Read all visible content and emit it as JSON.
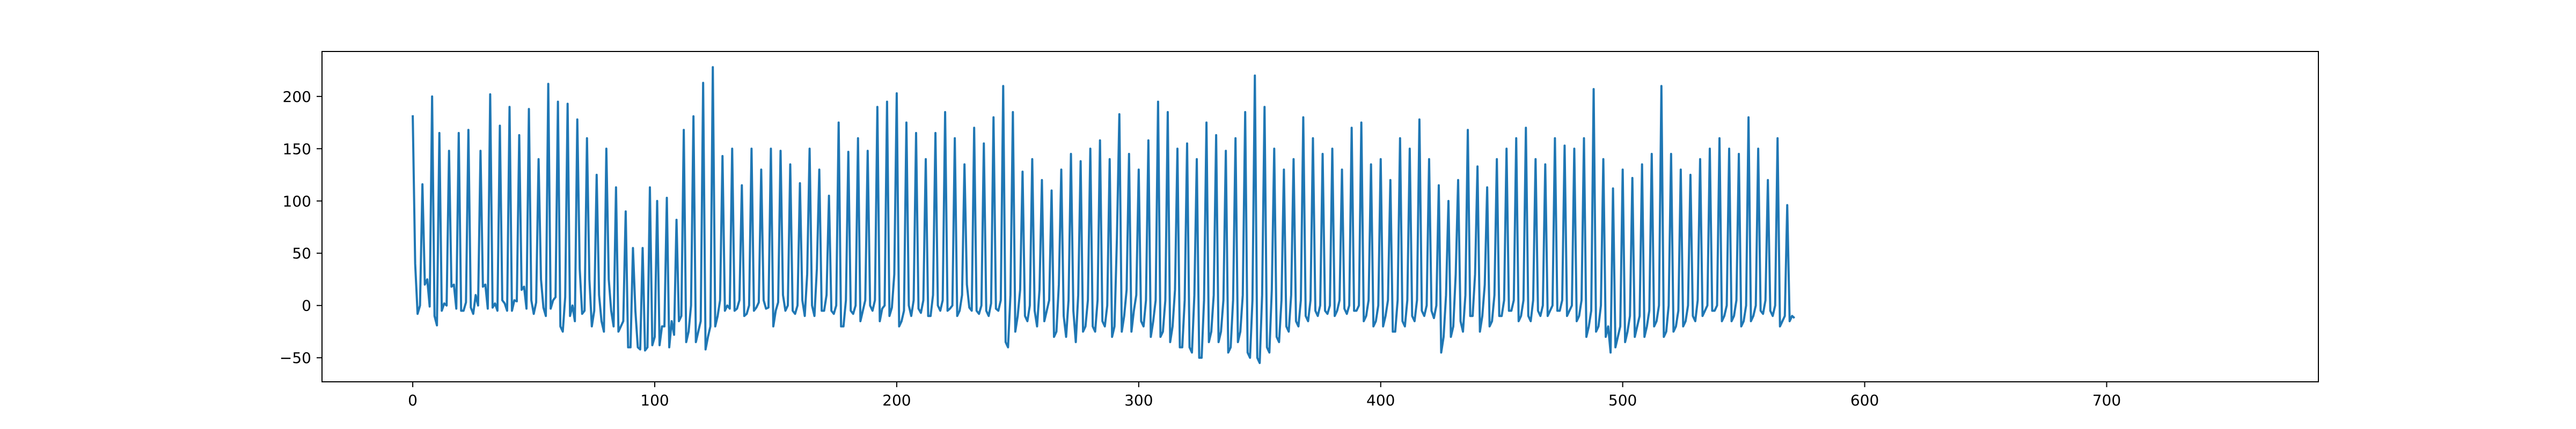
{
  "chart_data": {
    "type": "line",
    "title": "",
    "xlabel": "",
    "ylabel": "",
    "xlim": [
      -37.5,
      787.5
    ],
    "ylim": [
      -73,
      243
    ],
    "x_ticks": [
      0,
      100,
      200,
      300,
      400,
      500,
      600,
      700
    ],
    "y_ticks": [
      -50,
      0,
      50,
      100,
      150,
      200
    ],
    "x_tick_labels": [
      "0",
      "100",
      "200",
      "300",
      "400",
      "500",
      "600",
      "700"
    ],
    "y_tick_labels": [
      "−50",
      "0",
      "50",
      "100",
      "150",
      "200"
    ],
    "grid": false,
    "legend": "none",
    "series": [
      {
        "color": "#1f77b4",
        "x_start": 0,
        "x_step": 1,
        "values": [
          182,
          40,
          -8,
          0,
          116,
          20,
          25,
          -1,
          200,
          -10,
          -19,
          165,
          -5,
          2,
          0,
          148,
          18,
          20,
          -3,
          165,
          -5,
          -5,
          3,
          168,
          -2,
          -8,
          10,
          0,
          148,
          18,
          20,
          -3,
          202,
          -2,
          2,
          -5,
          172,
          5,
          2,
          -5,
          190,
          -5,
          5,
          4,
          163,
          15,
          18,
          -3,
          188,
          5,
          -8,
          3,
          140,
          25,
          -2,
          -10,
          212,
          -3,
          5,
          8,
          195,
          -20,
          -25,
          8,
          193,
          -10,
          0,
          -15,
          178,
          35,
          -8,
          -5,
          160,
          25,
          -20,
          -5,
          125,
          10,
          -15,
          -25,
          150,
          25,
          -5,
          -20,
          113,
          -25,
          -20,
          -15,
          90,
          -40,
          -40,
          55,
          -5,
          -40,
          -42,
          55,
          -43,
          -40,
          113,
          -38,
          -30,
          100,
          -38,
          -20,
          -20,
          103,
          -40,
          -15,
          -28,
          82,
          -15,
          -10,
          168,
          -35,
          -25,
          0,
          181,
          -35,
          -25,
          -15,
          213,
          -42,
          -30,
          -20,
          228,
          -20,
          -10,
          5,
          143,
          -5,
          0,
          -3,
          150,
          -5,
          -3,
          5,
          115,
          -10,
          -8,
          0,
          150,
          -5,
          -2,
          3,
          130,
          5,
          -3,
          -2,
          150,
          -20,
          -5,
          3,
          148,
          10,
          -5,
          0,
          135,
          -5,
          -8,
          0,
          117,
          5,
          -10,
          30,
          150,
          0,
          -10,
          35,
          130,
          -5,
          -5,
          10,
          105,
          -5,
          -8,
          0,
          175,
          -20,
          -20,
          5,
          147,
          -5,
          -8,
          0,
          160,
          -15,
          -5,
          5,
          148,
          0,
          -5,
          5,
          190,
          -15,
          -3,
          0,
          195,
          -10,
          -2,
          30,
          203,
          -20,
          -15,
          -5,
          175,
          0,
          -10,
          5,
          165,
          -3,
          -7,
          5,
          140,
          -10,
          -10,
          10,
          165,
          0,
          -5,
          5,
          185,
          -5,
          -3,
          0,
          160,
          -10,
          -5,
          10,
          135,
          20,
          -2,
          -5,
          170,
          -5,
          -8,
          0,
          155,
          -5,
          -10,
          2,
          180,
          -3,
          -5,
          5,
          210,
          -35,
          -40,
          10,
          185,
          -25,
          -10,
          15,
          128,
          -10,
          -15,
          0,
          140,
          -5,
          -20,
          15,
          120,
          -15,
          -5,
          5,
          110,
          -30,
          -25,
          20,
          130,
          -10,
          -30,
          5,
          145,
          -5,
          -35,
          10,
          138,
          -25,
          -20,
          5,
          150,
          -20,
          -25,
          5,
          158,
          -15,
          -20,
          0,
          140,
          -30,
          -20,
          65,
          183,
          -25,
          -10,
          15,
          145,
          -25,
          -5,
          10,
          130,
          -15,
          -20,
          5,
          158,
          -30,
          -15,
          5,
          195,
          -30,
          -25,
          5,
          185,
          -35,
          -20,
          15,
          150,
          -40,
          -40,
          5,
          155,
          -40,
          -45,
          10,
          140,
          -50,
          -50,
          5,
          175,
          -35,
          -25,
          10,
          163,
          -35,
          -25,
          5,
          148,
          -45,
          -40,
          5,
          160,
          -35,
          -25,
          10,
          185,
          -45,
          -50,
          5,
          220,
          -50,
          -55,
          10,
          190,
          -40,
          -45,
          15,
          150,
          -30,
          -35,
          5,
          130,
          -20,
          -25,
          10,
          140,
          -15,
          -20,
          5,
          180,
          -10,
          -15,
          5,
          160,
          -5,
          -10,
          0,
          145,
          -5,
          -8,
          0,
          150,
          -10,
          -5,
          5,
          130,
          -3,
          -8,
          0,
          170,
          -5,
          -5,
          0,
          175,
          -15,
          -10,
          5,
          135,
          -20,
          -15,
          0,
          140,
          -20,
          -10,
          5,
          120,
          -25,
          -25,
          5,
          160,
          -15,
          -20,
          5,
          150,
          -10,
          -15,
          5,
          178,
          -5,
          -10,
          0,
          140,
          -5,
          -12,
          0,
          115,
          -45,
          -30,
          10,
          100,
          -30,
          -20,
          30,
          120,
          -15,
          -25,
          10,
          168,
          -10,
          -10,
          30,
          133,
          -25,
          -10,
          20,
          113,
          -20,
          -15,
          10,
          140,
          -10,
          -10,
          5,
          150,
          -5,
          -5,
          5,
          160,
          -15,
          -10,
          5,
          170,
          -10,
          -15,
          5,
          140,
          -5,
          -10,
          0,
          135,
          -10,
          -5,
          0,
          160,
          -5,
          -5,
          5,
          153,
          -10,
          -5,
          0,
          150,
          -15,
          -10,
          5,
          160,
          -30,
          -20,
          -5,
          207,
          -25,
          -20,
          0,
          140,
          -30,
          -20,
          -45,
          112,
          -40,
          -30,
          -20,
          130,
          -35,
          -25,
          -10,
          122,
          -30,
          -20,
          -10,
          135,
          -30,
          -20,
          -5,
          145,
          -20,
          -15,
          0,
          210,
          -30,
          -25,
          0,
          145,
          -25,
          -20,
          -5,
          130,
          -20,
          -15,
          0,
          125,
          -10,
          -15,
          5,
          140,
          -10,
          -5,
          0,
          150,
          -5,
          -5,
          0,
          160,
          -15,
          -10,
          0,
          150,
          -15,
          -10,
          5,
          145,
          -20,
          -15,
          0,
          180,
          -15,
          -10,
          0,
          150,
          -5,
          -8,
          5,
          120,
          -5,
          -10,
          0,
          160,
          -20,
          -15,
          -10,
          96,
          -15,
          -10,
          -12
        ]
      }
    ]
  }
}
